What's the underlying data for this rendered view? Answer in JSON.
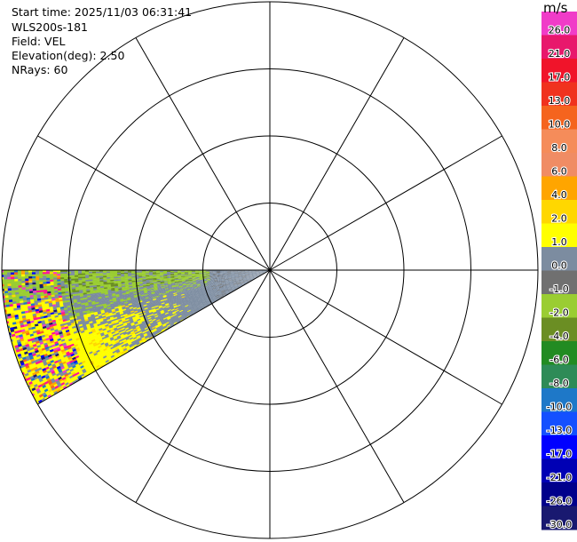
{
  "info": {
    "start_time": "Start time: 2025/11/03 06:31:41",
    "instrument": "WLS200s-181",
    "field": "Field: VEL",
    "elevation": "Elevation(deg): 2.50",
    "nrays": "NRays: 60"
  },
  "colorbar": {
    "unit": "m/s",
    "ticks": [
      "26.0",
      "21.0",
      "17.0",
      "13.0",
      "10.0",
      "8.0",
      "6.0",
      "4.0",
      "2.0",
      "1.0",
      "0.0",
      "-1.0",
      "-2.0",
      "-4.0",
      "-6.0",
      "-8.0",
      "-10.0",
      "-13.0",
      "-17.0",
      "-21.0",
      "-26.0",
      "-30.0"
    ],
    "colors": [
      "#f03cc8",
      "#e8186c",
      "#f0142a",
      "#f0321e",
      "#f5641e",
      "#f58c5a",
      "#f08c64",
      "#ffa500",
      "#ffd700",
      "#ffff00",
      "#7c8ca0",
      "#707070",
      "#9acd32",
      "#6b8e23",
      "#228b22",
      "#2e8b57",
      "#1e78c8",
      "#1450ff",
      "#0000ff",
      "#0000b4",
      "#00008b",
      "#191970"
    ]
  },
  "chart_data": {
    "type": "ppi-polar-scan",
    "field": "VEL",
    "units": "m/s",
    "elevation_deg": 2.5,
    "n_rays": 60,
    "sector_azimuth_deg": [
      240,
      270
    ],
    "range_rings": 4,
    "spoke_step_deg": 30,
    "velocity_zones": [
      {
        "region": "near range, all azimuths",
        "value_range": [
          -1.0,
          0.0
        ]
      },
      {
        "region": "mid range, azimuth 262-270",
        "value_range": [
          -2.0,
          -1.0
        ]
      },
      {
        "region": "mid range, azimuth 240-262",
        "value_range": [
          1.0,
          4.0
        ]
      },
      {
        "region": "far range",
        "value_range": [
          -30.0,
          26.0
        ]
      }
    ]
  }
}
